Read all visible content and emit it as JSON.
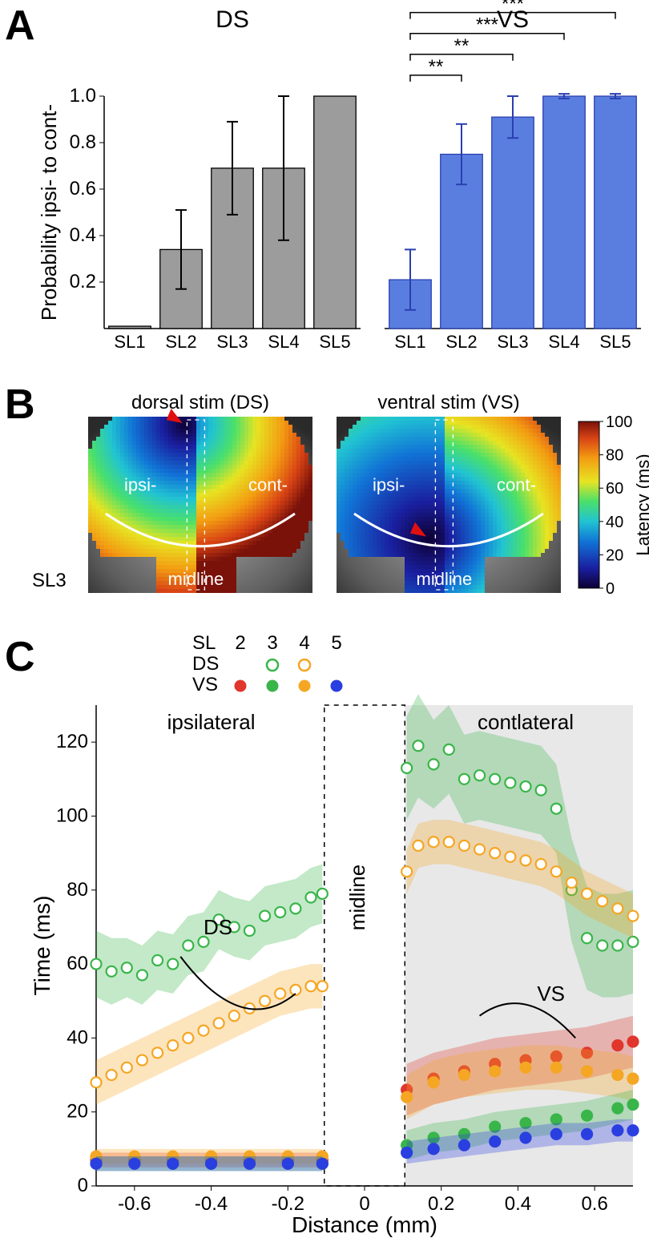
{
  "panelA": {
    "label": "A",
    "title_left": "DS",
    "title_right": "VS",
    "y_label": "Probability ipsi- to cont-",
    "categories": [
      "SL1",
      "SL2",
      "SL3",
      "SL4",
      "SL5"
    ],
    "ds": {
      "values": [
        0.01,
        0.34,
        0.69,
        0.69,
        1.0
      ],
      "err": [
        0.0,
        0.17,
        0.2,
        0.31,
        0.0
      ],
      "fill": "#9c9c9c",
      "stroke": "#000000"
    },
    "vs": {
      "values": [
        0.21,
        0.75,
        0.91,
        1.0,
        1.0
      ],
      "err": [
        0.13,
        0.13,
        0.09,
        0.01,
        0.01
      ],
      "fill": "#5a7ee0",
      "stroke": "#2a3fb0"
    },
    "ylim": [
      0,
      1.0
    ],
    "yticks": [
      0.2,
      0.4,
      0.6,
      0.8,
      1.0
    ],
    "sig_brackets_vs": [
      {
        "from": 0,
        "to": 1,
        "label": "**",
        "y": 1.09
      },
      {
        "from": 0,
        "to": 2,
        "label": "**",
        "y": 1.18
      },
      {
        "from": 0,
        "to": 3,
        "label": "***",
        "y": 1.27
      },
      {
        "from": 0,
        "to": 4,
        "label": "***",
        "y": 1.36
      }
    ],
    "label_fontsize": 22,
    "title_fontsize": 30
  },
  "panelB": {
    "label": "B",
    "row_label": "SL3",
    "left_title": "dorsal stim (DS)",
    "right_title": "ventral stim (VS)",
    "inset_labels": {
      "ipsi": "ipsi-",
      "cont": "cont-",
      "midline": "midline"
    },
    "colorbar": {
      "title": "Latency (ms)",
      "min": 0,
      "max": 100,
      "ticks": [
        0,
        20,
        40,
        60,
        80,
        100
      ],
      "stops": [
        {
          "p": 0.0,
          "c": "#0d0033"
        },
        {
          "p": 0.12,
          "c": "#1a1fa0"
        },
        {
          "p": 0.28,
          "c": "#1174d6"
        },
        {
          "p": 0.4,
          "c": "#21c3d3"
        },
        {
          "p": 0.52,
          "c": "#4ae06a"
        },
        {
          "p": 0.64,
          "c": "#e7e422"
        },
        {
          "p": 0.78,
          "c": "#f39c12"
        },
        {
          "p": 0.9,
          "c": "#d84315"
        },
        {
          "p": 1.0,
          "c": "#7a120a"
        }
      ]
    }
  },
  "panelC": {
    "label": "C",
    "x_label": "Distance (mm)",
    "y_label": "Time (ms)",
    "legend": {
      "sl_label": "SL",
      "sl_values": [
        "2",
        "3",
        "4",
        "5"
      ],
      "rows": [
        "DS",
        "VS"
      ],
      "ds_open": [
        {
          "sl": 3,
          "c": "#39b54a"
        },
        {
          "sl": 4,
          "c": "#f5a623"
        }
      ],
      "vs_filled": [
        {
          "sl": 2,
          "c": "#e0362c"
        },
        {
          "sl": 3,
          "c": "#39b54a"
        },
        {
          "sl": 4,
          "c": "#f5a623"
        },
        {
          "sl": 5,
          "c": "#2a3fe0"
        }
      ]
    },
    "region_labels": {
      "ipsi": "ipsilateral",
      "cont": "contlateral",
      "mid": "midline"
    },
    "curve_group_labels": {
      "ds": "DS",
      "vs": "VS"
    },
    "xlim": [
      -0.7,
      0.7
    ],
    "ylim": [
      0,
      130
    ],
    "xticks": [
      -0.6,
      -0.4,
      -0.2,
      0,
      0.2,
      0.4,
      0.6
    ],
    "yticks": [
      0,
      20,
      40,
      60,
      80,
      100,
      120
    ],
    "midline_band": [
      -0.105,
      0.105
    ],
    "series": {
      "ds3": {
        "color": "#39b54a",
        "open": true,
        "ipsi": {
          "x": [
            -0.7,
            -0.66,
            -0.62,
            -0.58,
            -0.54,
            -0.5,
            -0.46,
            -0.42,
            -0.38,
            -0.34,
            -0.3,
            -0.26,
            -0.22,
            -0.18,
            -0.14,
            -0.11
          ],
          "y": [
            60,
            58,
            59,
            57,
            61,
            60,
            65,
            66,
            72,
            70,
            69,
            73,
            74,
            75,
            78,
            79
          ],
          "band": [
            9,
            9,
            8,
            8,
            8,
            8,
            8,
            8,
            8,
            8,
            8,
            8,
            8,
            8,
            8,
            8
          ]
        },
        "cont": {
          "x": [
            0.11,
            0.14,
            0.18,
            0.22,
            0.26,
            0.3,
            0.34,
            0.38,
            0.42,
            0.46,
            0.5,
            0.54,
            0.58,
            0.62,
            0.66,
            0.7
          ],
          "y": [
            113,
            119,
            114,
            118,
            110,
            111,
            110,
            109,
            108,
            107,
            102,
            80,
            67,
            65,
            65,
            66
          ],
          "band": [
            14,
            14,
            12,
            12,
            12,
            12,
            12,
            12,
            12,
            12,
            12,
            14,
            14,
            14,
            14,
            14
          ]
        }
      },
      "ds4": {
        "color": "#f5a623",
        "open": true,
        "ipsi": {
          "x": [
            -0.7,
            -0.66,
            -0.62,
            -0.58,
            -0.54,
            -0.5,
            -0.46,
            -0.42,
            -0.38,
            -0.34,
            -0.3,
            -0.26,
            -0.22,
            -0.18,
            -0.14,
            -0.11
          ],
          "y": [
            28,
            30,
            32,
            34,
            36,
            38,
            40,
            42,
            44,
            46,
            48,
            50,
            52,
            53,
            54,
            54
          ],
          "band": [
            6,
            6,
            6,
            6,
            6,
            6,
            6,
            6,
            6,
            6,
            6,
            6,
            6,
            6,
            6,
            6
          ]
        },
        "cont": {
          "x": [
            0.11,
            0.14,
            0.18,
            0.22,
            0.26,
            0.3,
            0.34,
            0.38,
            0.42,
            0.46,
            0.5,
            0.54,
            0.58,
            0.62,
            0.66,
            0.7
          ],
          "y": [
            85,
            92,
            93,
            93,
            92,
            91,
            90,
            89,
            88,
            87,
            85,
            82,
            79,
            77,
            75,
            73
          ],
          "band": [
            6,
            6,
            6,
            6,
            6,
            6,
            6,
            6,
            6,
            6,
            6,
            6,
            6,
            6,
            6,
            6
          ]
        }
      },
      "vs2": {
        "color": "#e0362c",
        "open": false,
        "ipsi": {
          "x": [
            -0.7,
            -0.6,
            -0.5,
            -0.4,
            -0.3,
            -0.2,
            -0.11
          ],
          "y": [
            7,
            7,
            7,
            7,
            7,
            7,
            7
          ],
          "band": [
            2,
            2,
            2,
            2,
            2,
            2,
            2
          ]
        },
        "cont": {
          "x": [
            0.11,
            0.18,
            0.26,
            0.34,
            0.42,
            0.5,
            0.58,
            0.66,
            0.7
          ],
          "y": [
            26,
            29,
            31,
            33,
            34,
            35,
            36,
            38,
            39
          ],
          "band": [
            7,
            7,
            7,
            7,
            7,
            7,
            7,
            7,
            7
          ]
        }
      },
      "vs3": {
        "color": "#39b54a",
        "open": false,
        "ipsi": {
          "x": [
            -0.7,
            -0.6,
            -0.5,
            -0.4,
            -0.3,
            -0.2,
            -0.11
          ],
          "y": [
            6,
            6,
            6,
            6,
            6,
            6,
            6
          ],
          "band": [
            2,
            2,
            2,
            2,
            2,
            2,
            2
          ]
        },
        "cont": {
          "x": [
            0.11,
            0.18,
            0.26,
            0.34,
            0.42,
            0.5,
            0.58,
            0.66,
            0.7
          ],
          "y": [
            11,
            13,
            14,
            16,
            17,
            18,
            19,
            21,
            22
          ],
          "band": [
            4,
            4,
            4,
            4,
            4,
            4,
            4,
            4,
            4
          ]
        }
      },
      "vs4": {
        "color": "#f5a623",
        "open": false,
        "ipsi": {
          "x": [
            -0.7,
            -0.6,
            -0.5,
            -0.4,
            -0.3,
            -0.2,
            -0.11
          ],
          "y": [
            8,
            8,
            8,
            8,
            8,
            8,
            8
          ],
          "band": [
            2,
            2,
            2,
            2,
            2,
            2,
            2
          ]
        },
        "cont": {
          "x": [
            0.11,
            0.18,
            0.26,
            0.34,
            0.42,
            0.5,
            0.58,
            0.66,
            0.7
          ],
          "y": [
            24,
            28,
            30,
            31,
            32,
            32,
            31,
            30,
            29
          ],
          "band": [
            6,
            6,
            6,
            6,
            6,
            6,
            6,
            6,
            6
          ]
        }
      },
      "vs5": {
        "color": "#2a3fe0",
        "open": false,
        "ipsi": {
          "x": [
            -0.7,
            -0.6,
            -0.5,
            -0.4,
            -0.3,
            -0.2,
            -0.11
          ],
          "y": [
            6,
            6,
            6,
            6,
            6,
            6,
            6
          ],
          "band": [
            2,
            2,
            2,
            2,
            2,
            2,
            2
          ]
        },
        "cont": {
          "x": [
            0.11,
            0.18,
            0.26,
            0.34,
            0.42,
            0.5,
            0.58,
            0.66,
            0.7
          ],
          "y": [
            9,
            10,
            11,
            12,
            13,
            14,
            14,
            15,
            15
          ],
          "band": [
            3,
            3,
            3,
            3,
            3,
            3,
            3,
            3,
            3
          ]
        }
      }
    }
  }
}
